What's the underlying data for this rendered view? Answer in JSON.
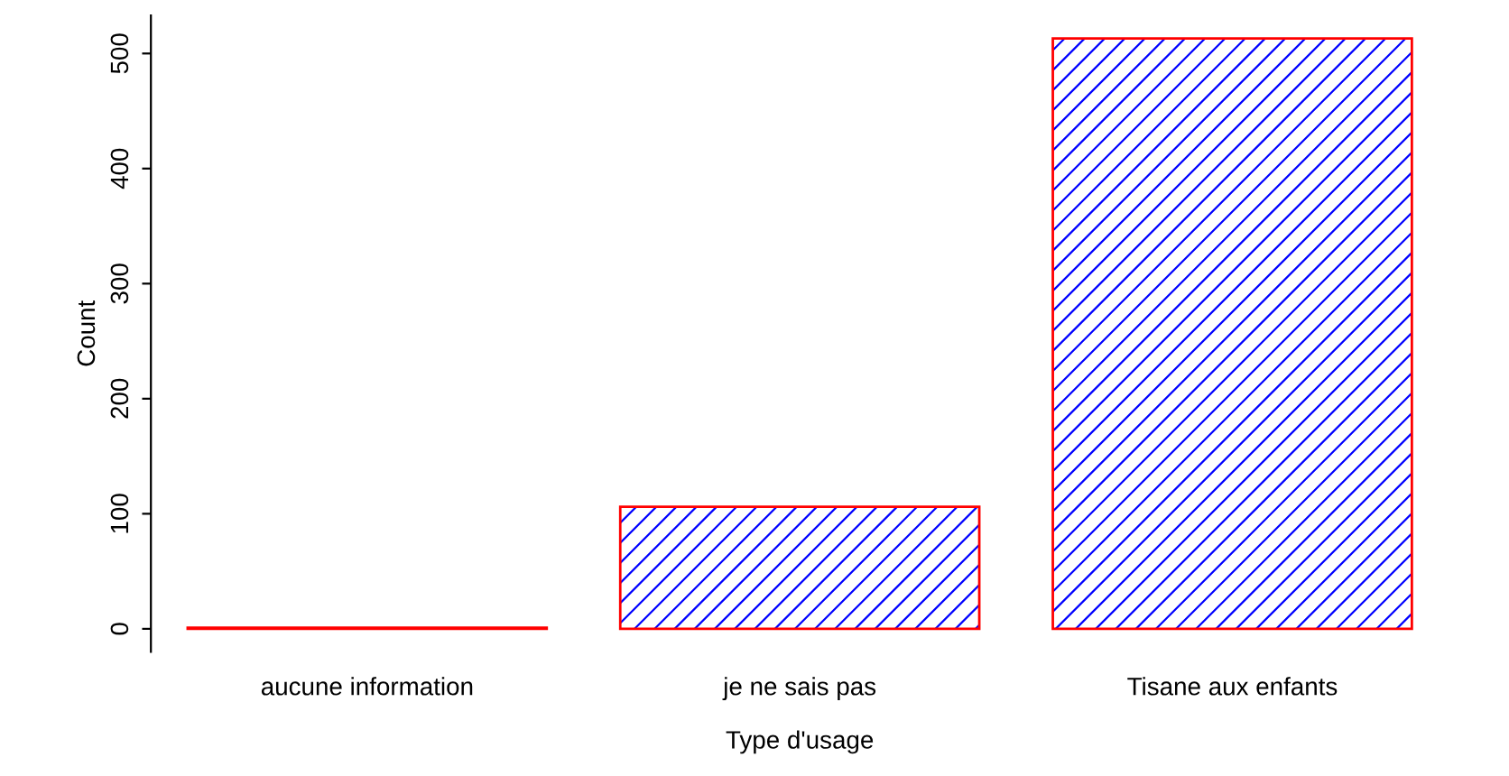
{
  "chart_data": {
    "type": "bar",
    "xlabel": "Type d'usage",
    "ylabel": "Count",
    "categories": [
      "aucune information",
      "je ne sais pas",
      "Tisane aux enfants"
    ],
    "series": [
      {
        "color": "#ff0000",
        "values": [
          1,
          106,
          513
        ]
      }
    ],
    "ylim": [
      -20,
      533
    ],
    "yticks": [
      0,
      100,
      200,
      300,
      400,
      500
    ],
    "grid": false,
    "legend": false
  }
}
